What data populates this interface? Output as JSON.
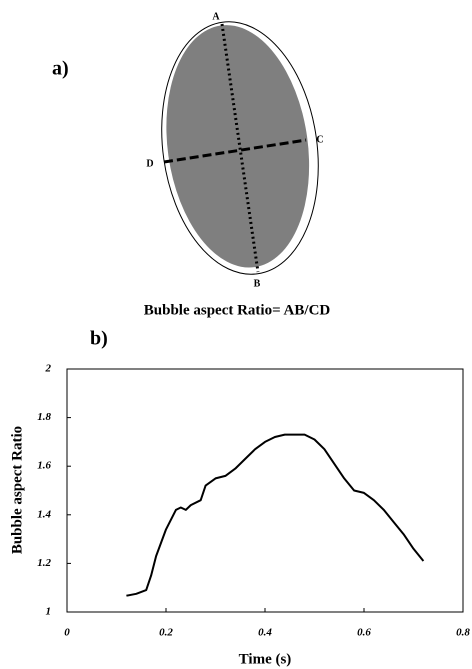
{
  "figure": {
    "panel_a_label": "a)",
    "points": [
      "A",
      "B",
      "C",
      "D"
    ],
    "caption": "Bubble aspect Ratio= AB/CD",
    "panel_b_label": "b)"
  },
  "chart_data": {
    "type": "line",
    "x_label": "Time (s)",
    "y_label": "Bubble aspect Ratio",
    "color": "#000000",
    "x": [
      0.12,
      0.14,
      0.16,
      0.17,
      0.18,
      0.2,
      0.22,
      0.23,
      0.24,
      0.25,
      0.27,
      0.28,
      0.3,
      0.32,
      0.34,
      0.36,
      0.38,
      0.4,
      0.42,
      0.44,
      0.46,
      0.48,
      0.5,
      0.52,
      0.54,
      0.56,
      0.58,
      0.6,
      0.62,
      0.64,
      0.66,
      0.68,
      0.7,
      0.72
    ],
    "values": [
      1.067,
      1.075,
      1.09,
      1.15,
      1.23,
      1.34,
      1.42,
      1.43,
      1.42,
      1.44,
      1.46,
      1.52,
      1.55,
      1.56,
      1.59,
      1.63,
      1.67,
      1.7,
      1.72,
      1.73,
      1.73,
      1.73,
      1.71,
      1.67,
      1.61,
      1.55,
      1.5,
      1.49,
      1.46,
      1.42,
      1.37,
      1.32,
      1.26,
      1.21
    ],
    "xlim": [
      0,
      0.8
    ],
    "xticks": [
      0,
      0.2,
      0.4,
      0.6,
      0.8
    ],
    "ylim": [
      1,
      2
    ],
    "yticks": [
      1,
      1.2,
      1.4,
      1.6,
      1.8,
      2
    ]
  }
}
